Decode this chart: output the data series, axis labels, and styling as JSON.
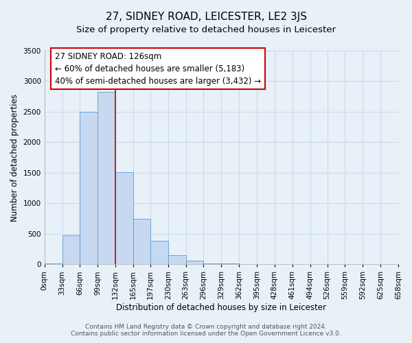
{
  "title": "27, SIDNEY ROAD, LEICESTER, LE2 3JS",
  "subtitle": "Size of property relative to detached houses in Leicester",
  "xlabel": "Distribution of detached houses by size in Leicester",
  "ylabel": "Number of detached properties",
  "bin_edges": [
    0,
    33,
    66,
    99,
    132,
    165,
    197,
    230,
    263,
    296,
    329,
    362,
    395,
    428,
    461,
    494,
    526,
    559,
    592,
    625,
    658
  ],
  "bin_labels": [
    "0sqm",
    "33sqm",
    "66sqm",
    "99sqm",
    "132sqm",
    "165sqm",
    "197sqm",
    "230sqm",
    "263sqm",
    "296sqm",
    "329sqm",
    "362sqm",
    "395sqm",
    "428sqm",
    "461sqm",
    "494sqm",
    "526sqm",
    "559sqm",
    "592sqm",
    "625sqm",
    "658sqm"
  ],
  "counts": [
    20,
    470,
    2500,
    2820,
    1510,
    740,
    390,
    145,
    65,
    20,
    10,
    5,
    5,
    0,
    0,
    0,
    0,
    0,
    0,
    0
  ],
  "bar_color": "#c6d9f0",
  "bar_edge_color": "#5b9bd5",
  "vline_x": 132,
  "vline_color": "#cc0000",
  "annotation_line1": "27 SIDNEY ROAD: 126sqm",
  "annotation_line2": "← 60% of detached houses are smaller (5,183)",
  "annotation_line3": "40% of semi-detached houses are larger (3,432) →",
  "ylim": [
    0,
    3500
  ],
  "yticks": [
    0,
    500,
    1000,
    1500,
    2000,
    2500,
    3000,
    3500
  ],
  "grid_color": "#c8d8ec",
  "background_color": "#e8f0f8",
  "footer_line1": "Contains HM Land Registry data © Crown copyright and database right 2024.",
  "footer_line2": "Contains public sector information licensed under the Open Government Licence v3.0.",
  "title_fontsize": 11,
  "subtitle_fontsize": 9.5,
  "axis_label_fontsize": 8.5,
  "tick_fontsize": 7.5,
  "annotation_fontsize": 8.5,
  "footer_fontsize": 6.5
}
